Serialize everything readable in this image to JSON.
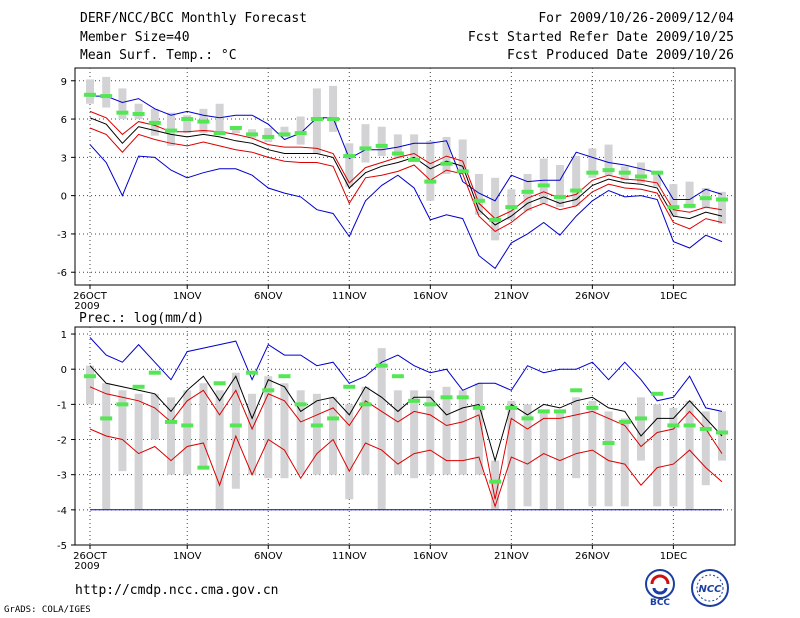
{
  "header": {
    "title": "DERF/NCC/BCC Monthly Forecast",
    "member_size": "Member Size=40",
    "variable": "Mean Surf. Temp.: °C",
    "period": "For 2009/10/26-2009/12/04",
    "refer_date": "Fcst Started Refer Date 2009/10/25",
    "produced_date": "Fcst Produced Date 2009/10/26"
  },
  "footer": {
    "url": "http://cmdp.ncc.cma.gov.cn",
    "credit": "GrADS: COLA/IGES",
    "logo_bcc": "BCC",
    "logo_ncc": "NCC"
  },
  "colors": {
    "max_min": "#0000cc",
    "ensemble": "#000000",
    "spread": "#dd0000",
    "box": "#d3d3d6",
    "marker": "#55e655",
    "grid": "#444444"
  },
  "chart_data": [
    {
      "type": "line",
      "title": "Mean Surf. Temp.: °C",
      "x_start_day": 0,
      "days": 40,
      "x_tick_labels": [
        "26OCT",
        "1NOV",
        "6NOV",
        "11NOV",
        "16NOV",
        "21NOV",
        "26NOV",
        "1DEC"
      ],
      "x_tick_days": [
        0,
        6,
        11,
        16,
        21,
        26,
        31,
        36
      ],
      "x_year_label": "2009",
      "ylim": [
        -7,
        10
      ],
      "y_ticks": [
        -6,
        -3,
        0,
        3,
        6,
        9
      ],
      "grid": true,
      "series": [
        {
          "name": "max",
          "values": [
            7.8,
            7.8,
            7.3,
            7.6,
            6.8,
            6.3,
            6.6,
            6.3,
            6.1,
            6.3,
            6.3,
            5.6,
            4.4,
            4.9,
            6.1,
            6.1,
            2.9,
            3.6,
            3.6,
            3.8,
            4.1,
            4.1,
            4.3,
            1.1,
            0.2,
            -0.4,
            1.6,
            1.1,
            1.2,
            1.2,
            3.4,
            3.0,
            2.6,
            2.4,
            2.1,
            1.8,
            -0.3,
            -0.3,
            0.5,
            0.1
          ]
        },
        {
          "name": "ensemble",
          "values": [
            6.1,
            5.6,
            4.1,
            5.4,
            5.1,
            4.8,
            4.6,
            4.8,
            4.6,
            4.3,
            4.1,
            3.6,
            3.3,
            3.3,
            3.3,
            3.0,
            0.6,
            1.8,
            2.3,
            2.6,
            3.0,
            2.1,
            2.7,
            2.3,
            -1.1,
            -2.3,
            -1.6,
            -0.6,
            -0.1,
            -0.6,
            -0.3,
            0.8,
            1.3,
            1.0,
            0.9,
            0.6,
            -1.6,
            -1.8,
            -1.3,
            -1.6
          ]
        },
        {
          "name": "spread_upper",
          "values": [
            6.6,
            6.1,
            4.8,
            5.8,
            5.5,
            5.0,
            5.0,
            5.1,
            5.0,
            4.8,
            4.5,
            4.0,
            3.8,
            3.8,
            3.7,
            3.3,
            1.0,
            2.2,
            2.6,
            3.0,
            3.3,
            2.5,
            3.1,
            2.7,
            -0.6,
            -1.8,
            -1.2,
            -0.2,
            0.3,
            -0.2,
            0.1,
            1.2,
            1.6,
            1.3,
            1.2,
            1.0,
            -1.1,
            -1.3,
            -0.9,
            -1.1
          ]
        },
        {
          "name": "spread_lower",
          "values": [
            5.3,
            4.8,
            3.4,
            4.8,
            4.4,
            4.1,
            3.9,
            4.2,
            3.9,
            3.6,
            3.4,
            3.0,
            2.7,
            2.6,
            2.6,
            2.3,
            -0.6,
            1.4,
            1.6,
            1.9,
            2.4,
            1.2,
            2.0,
            1.7,
            -1.6,
            -2.8,
            -2.1,
            -1.1,
            -0.6,
            -1.1,
            -0.8,
            0.3,
            0.9,
            0.6,
            0.5,
            0.2,
            -2.1,
            -2.6,
            -1.8,
            -2.1
          ]
        },
        {
          "name": "min",
          "values": [
            4.0,
            2.6,
            0.0,
            3.1,
            3.0,
            2.0,
            1.4,
            1.8,
            2.1,
            2.1,
            1.6,
            0.6,
            0.2,
            -0.1,
            -1.1,
            -1.4,
            -3.2,
            -0.4,
            0.8,
            1.6,
            0.6,
            -1.9,
            -1.5,
            -1.8,
            -4.7,
            -5.7,
            -3.7,
            -3.0,
            -2.1,
            -3.1,
            -1.6,
            -0.4,
            0.4,
            -0.1,
            0.0,
            -0.3,
            -3.6,
            -4.1,
            -3.1,
            -3.6
          ]
        },
        {
          "name": "boxes",
          "values": [
            [
              7.2,
              9.1
            ],
            [
              6.9,
              9.3
            ],
            [
              6.0,
              8.4
            ],
            [
              6.0,
              7.2
            ],
            [
              4.7,
              6.8
            ],
            [
              3.9,
              6.5
            ],
            [
              4.9,
              6.3
            ],
            [
              4.9,
              6.8
            ],
            [
              5.0,
              7.2
            ],
            [
              4.9,
              5.4
            ],
            [
              4.5,
              5.2
            ],
            [
              4.2,
              5.3
            ],
            [
              4.6,
              5.4
            ],
            [
              4.0,
              6.2
            ],
            [
              3.3,
              8.4
            ],
            [
              5.0,
              8.6
            ],
            [
              0.7,
              4.1
            ],
            [
              2.6,
              5.6
            ],
            [
              3.1,
              5.4
            ],
            [
              2.9,
              4.8
            ],
            [
              2.8,
              4.8
            ],
            [
              -0.4,
              4.3
            ],
            [
              1.7,
              4.6
            ],
            [
              1.7,
              4.4
            ],
            [
              -1.5,
              1.7
            ],
            [
              -3.5,
              1.4
            ],
            [
              -1.9,
              0.5
            ],
            [
              -1.2,
              1.7
            ],
            [
              -0.6,
              2.9
            ],
            [
              -0.9,
              2.4
            ],
            [
              -0.8,
              3.1
            ],
            [
              1.4,
              3.7
            ],
            [
              1.6,
              4.0
            ],
            [
              1.2,
              2.3
            ],
            [
              1.0,
              2.6
            ],
            [
              0.7,
              1.9
            ],
            [
              -1.6,
              0.9
            ],
            [
              -1.0,
              1.1
            ],
            [
              -1.0,
              0.6
            ],
            [
              -2.2,
              0.3
            ]
          ]
        },
        {
          "name": "observed",
          "values": [
            7.9,
            7.8,
            6.5,
            6.4,
            5.7,
            5.1,
            6.0,
            5.8,
            4.9,
            5.3,
            4.8,
            4.6,
            4.8,
            4.9,
            6.0,
            6.0,
            3.1,
            3.7,
            3.9,
            3.3,
            2.8,
            1.1,
            2.5,
            1.9,
            -0.4,
            -1.9,
            -0.9,
            0.3,
            0.8,
            -0.1,
            0.4,
            1.8,
            2.0,
            1.8,
            1.5,
            1.8,
            -0.9,
            -0.8,
            -0.2,
            -0.3
          ]
        }
      ]
    },
    {
      "type": "line",
      "title": "Prec.: log(mm/d)",
      "x_start_day": 0,
      "days": 40,
      "x_tick_labels": [
        "26OCT",
        "1NOV",
        "6NOV",
        "11NOV",
        "16NOV",
        "21NOV",
        "26NOV",
        "1DEC"
      ],
      "x_tick_days": [
        0,
        6,
        11,
        16,
        21,
        26,
        31,
        36
      ],
      "x_year_label": "2009",
      "ylim": [
        -5,
        1.2
      ],
      "y_ticks": [
        -5,
        -4,
        -3,
        -2,
        -1,
        0,
        1
      ],
      "grid": true,
      "series": [
        {
          "name": "max",
          "values": [
            0.9,
            0.4,
            0.2,
            0.7,
            0.2,
            -0.3,
            0.5,
            0.6,
            0.7,
            0.8,
            -0.3,
            0.7,
            0.4,
            0.4,
            0.1,
            0.2,
            -0.4,
            -0.2,
            0.2,
            0.4,
            0.1,
            -0.1,
            0.0,
            -0.6,
            -0.4,
            -0.4,
            -0.6,
            0.1,
            -0.1,
            0.0,
            0.0,
            0.2,
            -0.3,
            0.2,
            -0.3,
            -0.9,
            -0.8,
            -0.2,
            -1.1,
            -1.2
          ]
        },
        {
          "name": "ensemble",
          "values": [
            0.1,
            -0.4,
            -0.5,
            -0.6,
            -0.7,
            -1.2,
            -0.6,
            -0.2,
            -0.9,
            -0.2,
            -1.4,
            -0.3,
            -0.5,
            -1.2,
            -0.9,
            -0.8,
            -1.3,
            -0.5,
            -0.8,
            -1.2,
            -0.8,
            -0.8,
            -1.3,
            -1.1,
            -1.0,
            -2.6,
            -1.0,
            -1.3,
            -1.0,
            -1.1,
            -0.9,
            -0.8,
            -1.1,
            -1.2,
            -1.9,
            -1.4,
            -1.4,
            -0.9,
            -1.4,
            -1.9
          ]
        },
        {
          "name": "spread_upper",
          "values": [
            -0.5,
            -0.7,
            -0.8,
            -0.9,
            -1.1,
            -1.5,
            -0.9,
            -0.6,
            -1.3,
            -0.6,
            -1.7,
            -0.7,
            -0.9,
            -1.5,
            -1.3,
            -1.1,
            -1.6,
            -0.9,
            -1.2,
            -1.5,
            -1.2,
            -1.3,
            -1.6,
            -1.5,
            -1.3,
            -3.7,
            -1.4,
            -1.7,
            -1.4,
            -1.4,
            -1.3,
            -1.2,
            -1.4,
            -1.6,
            -2.2,
            -1.8,
            -1.7,
            -1.2,
            -1.7,
            -2.4
          ]
        },
        {
          "name": "spread_lower",
          "values": [
            -1.7,
            -1.9,
            -2.0,
            -2.4,
            -2.2,
            -2.6,
            -2.2,
            -2.1,
            -3.3,
            -1.9,
            -3.0,
            -2.0,
            -2.3,
            -3.1,
            -2.4,
            -2.0,
            -2.9,
            -2.1,
            -2.3,
            -2.7,
            -2.4,
            -2.3,
            -2.6,
            -2.6,
            -2.5,
            -3.9,
            -2.5,
            -2.7,
            -2.4,
            -2.6,
            -2.4,
            -2.3,
            -2.6,
            -2.7,
            -3.3,
            -2.8,
            -2.7,
            -2.3,
            -2.8,
            -3.2
          ]
        },
        {
          "name": "min",
          "values": [
            -4.0,
            -4.0,
            -4.0,
            -4.0,
            -4.0,
            -4.0,
            -4.0,
            -4.0,
            -4.0,
            -4.0,
            -4.0,
            -4.0,
            -4.0,
            -4.0,
            -4.0,
            -4.0,
            -4.0,
            -4.0,
            -4.0,
            -4.0,
            -4.0,
            -4.0,
            -4.0,
            -4.0,
            -4.0,
            -4.0,
            -4.0,
            -4.0,
            -4.0,
            -4.0,
            -4.0,
            -4.0,
            -4.0,
            -4.0,
            -4.0,
            -4.0,
            -4.0,
            -4.0,
            -4.0,
            -4.0
          ]
        },
        {
          "name": "boxes",
          "values": [
            [
              -1.0,
              0.1
            ],
            [
              -4.0,
              -0.4
            ],
            [
              -2.9,
              -0.6
            ],
            [
              -4.0,
              -0.7
            ],
            [
              -2.0,
              -0.7
            ],
            [
              -3.0,
              -0.8
            ],
            [
              -3.0,
              -0.6
            ],
            [
              -2.8,
              -0.4
            ],
            [
              -4.0,
              -0.6
            ],
            [
              -3.4,
              -0.1
            ],
            [
              -3.0,
              -0.7
            ],
            [
              -3.1,
              -0.2
            ],
            [
              -3.1,
              -0.4
            ],
            [
              -3.0,
              -0.6
            ],
            [
              -3.0,
              -0.7
            ],
            [
              -3.0,
              -0.8
            ],
            [
              -3.7,
              -1.0
            ],
            [
              -3.0,
              -0.5
            ],
            [
              -4.0,
              0.6
            ],
            [
              -3.0,
              -0.6
            ],
            [
              -3.1,
              -0.6
            ],
            [
              -3.0,
              -0.6
            ],
            [
              -3.0,
              -0.5
            ],
            [
              -3.0,
              -0.6
            ],
            [
              -3.0,
              -0.4
            ],
            [
              -4.0,
              -2.6
            ],
            [
              -4.0,
              -0.9
            ],
            [
              -3.9,
              -1.0
            ],
            [
              -4.0,
              -1.2
            ],
            [
              -4.0,
              -1.2
            ],
            [
              -3.1,
              -0.8
            ],
            [
              -3.9,
              -0.9
            ],
            [
              -3.9,
              -1.2
            ],
            [
              -3.9,
              -1.4
            ],
            [
              -2.6,
              -0.8
            ],
            [
              -3.9,
              -1.0
            ],
            [
              -3.9,
              -1.1
            ],
            [
              -4.0,
              -0.9
            ],
            [
              -3.3,
              -1.2
            ],
            [
              -2.6,
              -1.2
            ]
          ]
        },
        {
          "name": "observed",
          "values": [
            -0.2,
            -1.4,
            -1.0,
            -0.5,
            -0.1,
            -1.5,
            -1.6,
            -2.8,
            -0.4,
            -1.6,
            -0.1,
            -0.6,
            -0.2,
            -1.0,
            -1.6,
            -1.4,
            -0.5,
            -1.0,
            0.1,
            -0.2,
            -0.9,
            -1.0,
            -0.8,
            -0.8,
            -1.1,
            -3.2,
            -1.1,
            -1.4,
            -1.2,
            -1.2,
            -0.6,
            -1.1,
            -2.1,
            -1.5,
            -1.4,
            -0.7,
            -1.6,
            -1.6,
            -1.7,
            -1.8
          ]
        }
      ]
    }
  ]
}
